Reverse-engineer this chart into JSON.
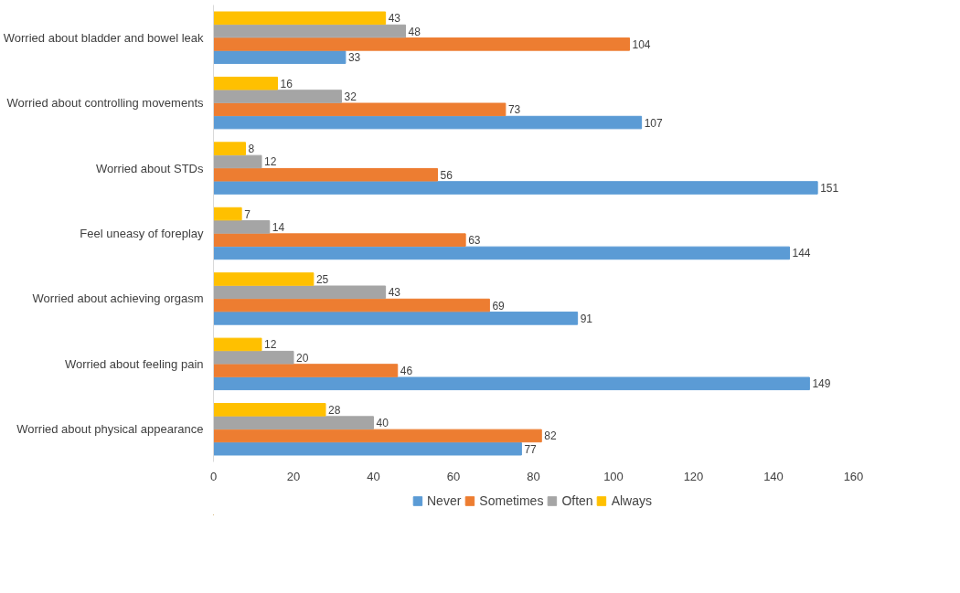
{
  "chart_data": {
    "type": "bar",
    "orientation": "horizontal",
    "categories": [
      "Worried about bladder and bowel leak",
      "Worried about controlling movements",
      "Worried about STDs",
      "Feel uneasy of foreplay",
      "Worried about achieving orgasm",
      "Worried about feeling pain",
      "Worried about physical appearance"
    ],
    "series": [
      {
        "name": "Never",
        "color": "#5b9bd5",
        "values": [
          33,
          107,
          151,
          144,
          91,
          149,
          77
        ]
      },
      {
        "name": "Sometimes",
        "color": "#ed7d31",
        "values": [
          104,
          73,
          56,
          63,
          69,
          46,
          82
        ]
      },
      {
        "name": "Often",
        "color": "#a5a5a5",
        "values": [
          48,
          32,
          12,
          14,
          43,
          20,
          40
        ]
      },
      {
        "name": "Always",
        "color": "#ffc000",
        "values": [
          43,
          16,
          8,
          7,
          25,
          12,
          28
        ]
      }
    ],
    "xlim": [
      0,
      160
    ],
    "xticks": [
      0,
      20,
      40,
      60,
      80,
      100,
      120,
      140,
      160
    ],
    "grid": false,
    "legend": "bottom",
    "data_labels": true
  }
}
